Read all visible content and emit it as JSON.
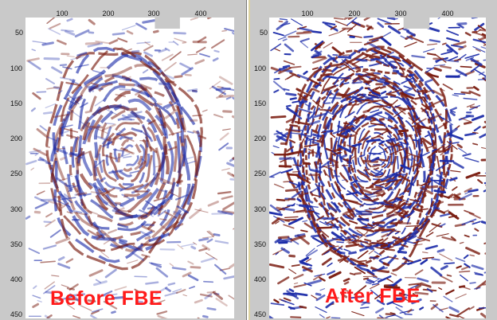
{
  "panels": [
    {
      "id": "before",
      "caption": "Before FBE",
      "x_ticks": [
        "100",
        "200",
        "300",
        "400"
      ],
      "y_ticks": [
        "50",
        "100",
        "150",
        "200",
        "250",
        "300",
        "350",
        "400",
        "450"
      ]
    },
    {
      "id": "after",
      "caption": "After FBE",
      "x_ticks": [
        "100",
        "200",
        "300",
        "400"
      ],
      "y_ticks": [
        "50",
        "100",
        "150",
        "200",
        "250",
        "300",
        "350",
        "400",
        "450"
      ]
    }
  ],
  "colors": {
    "positive": "#7a1c10",
    "negative": "#1a2aa8",
    "frame": "#c9c9c9",
    "caption": "#ff1a1a"
  }
}
